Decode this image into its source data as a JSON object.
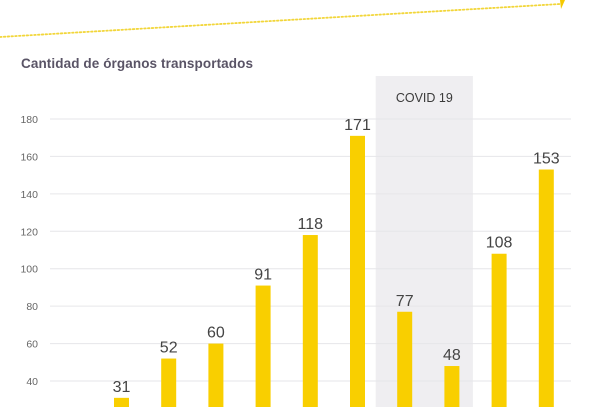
{
  "colors": {
    "bar": "#f9cf00",
    "grid": "#e6e6e9",
    "band": "#efeef1",
    "accent_dots": "#f2d63a"
  },
  "chart_data": {
    "type": "bar",
    "title": "Cantidad de órganos transportados",
    "xlabel": "",
    "ylabel": "",
    "categories": [
      "",
      "",
      "",
      "",
      "",
      "",
      "",
      "",
      "",
      ""
    ],
    "values": [
      31,
      52,
      60,
      91,
      118,
      171,
      77,
      48,
      108,
      153
    ],
    "data_labels": [
      "31",
      "52",
      "60",
      "91",
      "118",
      "171",
      "77",
      "48",
      "108",
      "153"
    ],
    "yticks": [
      40,
      60,
      80,
      100,
      120,
      140,
      160,
      180
    ],
    "ylim": [
      40,
      180
    ],
    "grid": true,
    "legend": "none",
    "annotations": [
      {
        "text": "COVID 19",
        "type": "shaded-band",
        "covers_bar_indices": [
          6,
          7
        ]
      }
    ]
  }
}
